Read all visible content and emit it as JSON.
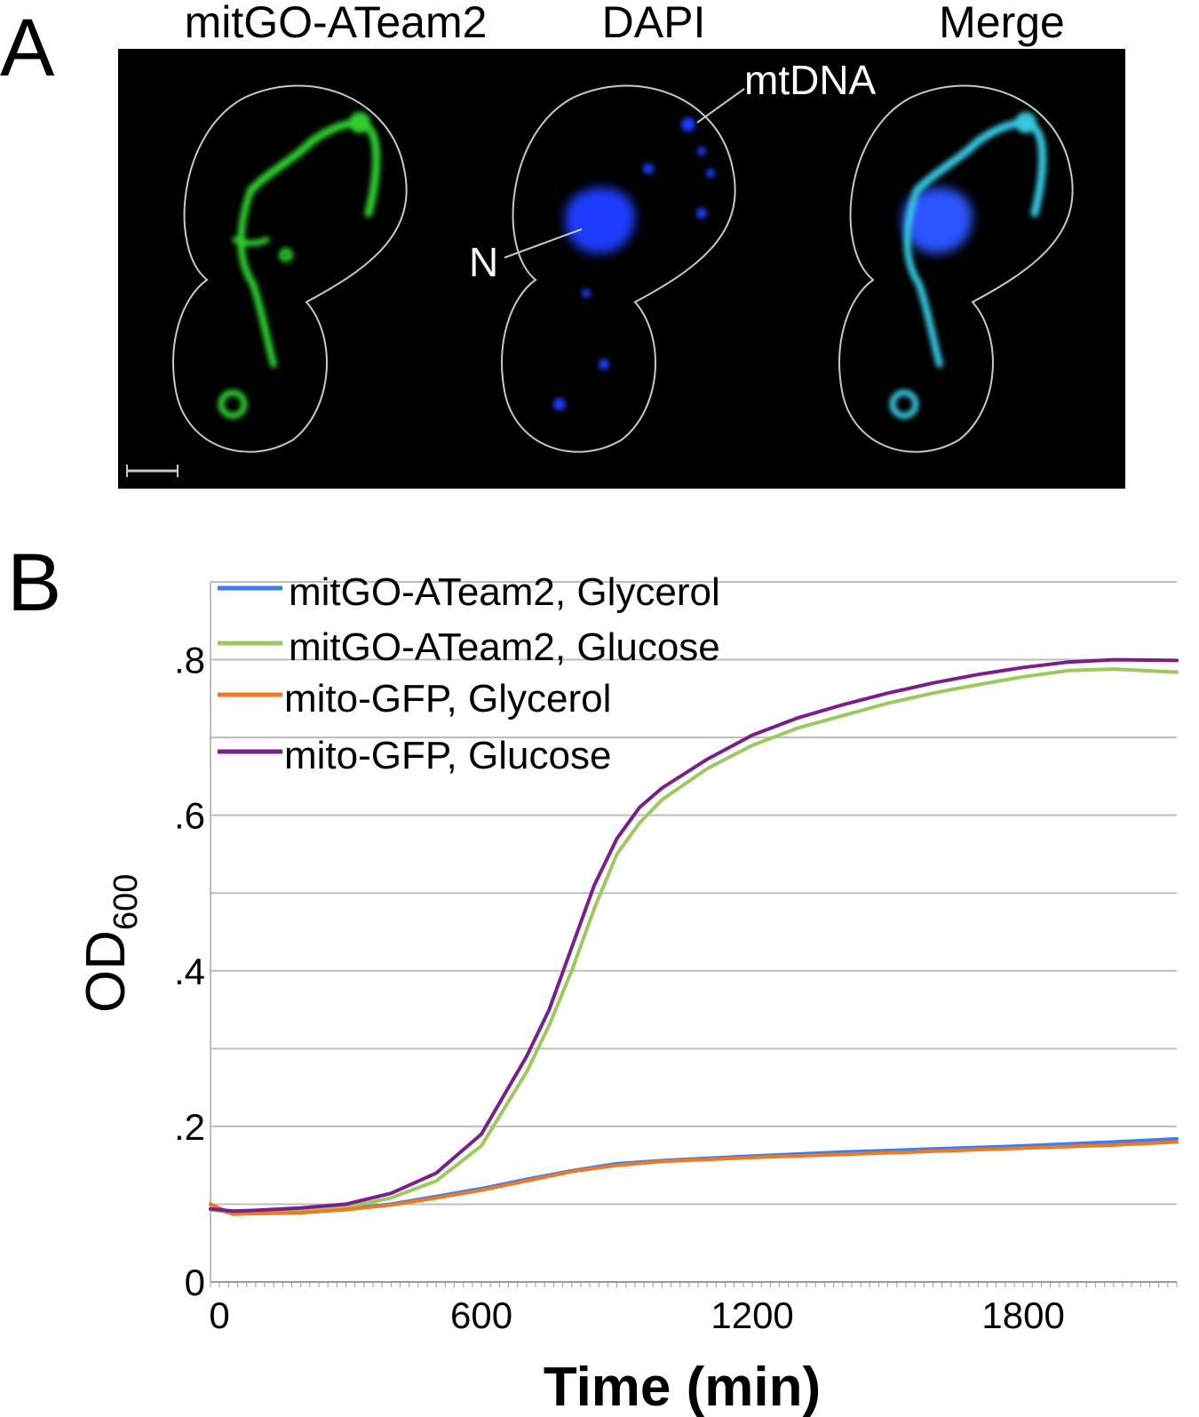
{
  "panel_a": {
    "letter": "A",
    "channels": [
      "mitGO-ATeam2",
      "DAPI",
      "Merge"
    ],
    "annotations": {
      "mtdna": "mtDNA",
      "nucleus": "N"
    },
    "colors": {
      "mitgo": "#2fcf2f",
      "dapi": "#1f3cff",
      "merge": "#35c7e0",
      "outline": "#c8c8c8",
      "background": "#000000"
    }
  },
  "panel_b": {
    "letter": "B"
  },
  "chart_data": {
    "type": "line",
    "xlabel": "Time (min)",
    "ylabel": "OD",
    "ylabel_subscript": "600",
    "xlim": [
      0,
      2140
    ],
    "ylim": [
      0,
      0.9
    ],
    "x_ticks": [
      0,
      600,
      1200,
      1800
    ],
    "x_tick_labels": [
      "0",
      "600",
      "1200",
      "1800"
    ],
    "y_ticks": [
      0,
      0.2,
      0.4,
      0.6,
      0.8
    ],
    "y_tick_labels": [
      "0",
      ".2",
      ".4",
      ".6",
      ".8"
    ],
    "grid": true,
    "legend_position": "top-left",
    "series": [
      {
        "name": "mitGO-ATeam2, Glycerol",
        "color": "#3a7ef0",
        "x": [
          0,
          50,
          100,
          200,
          300,
          400,
          500,
          600,
          700,
          800,
          900,
          1000,
          1200,
          1400,
          1600,
          1800,
          2000,
          2140
        ],
        "y": [
          0.094,
          0.088,
          0.089,
          0.09,
          0.094,
          0.1,
          0.11,
          0.12,
          0.132,
          0.143,
          0.152,
          0.156,
          0.162,
          0.167,
          0.171,
          0.175,
          0.18,
          0.184
        ]
      },
      {
        "name": "mitGO-ATeam2, Glucose",
        "color": "#9cc85e",
        "x": [
          0,
          50,
          100,
          200,
          300,
          400,
          500,
          600,
          700,
          750,
          800,
          850,
          900,
          950,
          1000,
          1100,
          1200,
          1300,
          1400,
          1500,
          1600,
          1700,
          1800,
          1900,
          2000,
          2140
        ],
        "y": [
          0.093,
          0.089,
          0.09,
          0.092,
          0.096,
          0.108,
          0.13,
          0.175,
          0.27,
          0.33,
          0.4,
          0.48,
          0.55,
          0.59,
          0.62,
          0.66,
          0.69,
          0.712,
          0.728,
          0.744,
          0.757,
          0.768,
          0.778,
          0.786,
          0.788,
          0.784
        ]
      },
      {
        "name": "mito-GFP, Glycerol",
        "color": "#f07820",
        "x": [
          0,
          50,
          100,
          200,
          300,
          400,
          500,
          600,
          700,
          800,
          900,
          1000,
          1200,
          1400,
          1600,
          1800,
          2000,
          2140
        ],
        "y": [
          0.1,
          0.087,
          0.088,
          0.089,
          0.093,
          0.099,
          0.108,
          0.118,
          0.13,
          0.142,
          0.15,
          0.155,
          0.16,
          0.164,
          0.168,
          0.172,
          0.176,
          0.18
        ]
      },
      {
        "name": "mito-GFP, Glucose",
        "color": "#7a1f8a",
        "x": [
          0,
          50,
          100,
          200,
          300,
          400,
          500,
          600,
          700,
          750,
          800,
          850,
          900,
          950,
          1000,
          1100,
          1200,
          1300,
          1400,
          1500,
          1600,
          1700,
          1800,
          1900,
          2000,
          2140
        ],
        "y": [
          0.094,
          0.091,
          0.092,
          0.095,
          0.1,
          0.114,
          0.14,
          0.19,
          0.29,
          0.35,
          0.43,
          0.51,
          0.57,
          0.61,
          0.635,
          0.672,
          0.703,
          0.725,
          0.742,
          0.757,
          0.77,
          0.781,
          0.79,
          0.797,
          0.8,
          0.799
        ]
      }
    ]
  }
}
